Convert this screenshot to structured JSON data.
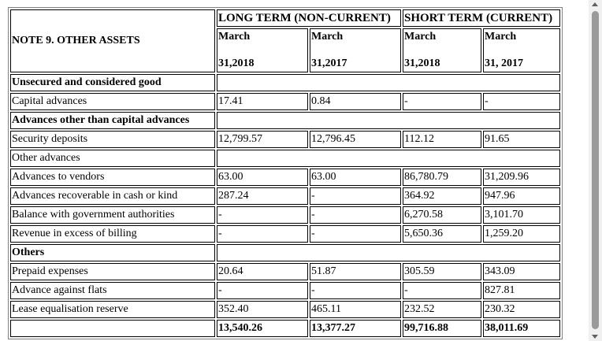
{
  "table": {
    "title": "NOTE 9. OTHER ASSETS",
    "group_long": "LONG TERM (NON-CURRENT)",
    "group_short": "SHORT TERM (CURRENT)",
    "periods": [
      {
        "line1": "March",
        "line2": "31,2018"
      },
      {
        "line1": "March",
        "line2": "31,2017"
      },
      {
        "line1": "March",
        "line2": "31,2018"
      },
      {
        "line1": "March",
        "line2": "31, 2017"
      }
    ],
    "rows": [
      {
        "label": "Unsecured and considered good",
        "section": true
      },
      {
        "label": "Capital advances",
        "values": [
          "17.41",
          "0.84",
          "-",
          "-"
        ]
      },
      {
        "label": "Advances other than capital advances",
        "section": true
      },
      {
        "label": "Security deposits",
        "values": [
          "12,799.57",
          "12,796.45",
          "112.12",
          "91.65"
        ]
      },
      {
        "label": "Other advances",
        "subsection": true
      },
      {
        "label": "Advances to vendors",
        "values": [
          "63.00",
          "63.00",
          "86,780.79",
          "31,209.96"
        ]
      },
      {
        "label": "Advances recoverable in cash or kind",
        "values": [
          "287.24",
          "-",
          "364.92",
          "947.96"
        ]
      },
      {
        "label": "Balance with government authorities",
        "values": [
          "-",
          "-",
          "6,270.58",
          "3,101.70"
        ]
      },
      {
        "label": "Revenue in excess of billing",
        "values": [
          "-",
          "-",
          "5,650.36",
          "1,259.20"
        ]
      },
      {
        "label": "Others",
        "section": true
      },
      {
        "label": "Prepaid expenses",
        "values": [
          "20.64",
          "51.87",
          "305.59",
          "343.09"
        ]
      },
      {
        "label": "Advance against flats",
        "values": [
          "-",
          "-",
          "-",
          "827.81"
        ]
      },
      {
        "label": "Lease equalisation reserve",
        "values": [
          "352.40",
          "465.11",
          "232.52",
          "230.32"
        ]
      }
    ],
    "totals": [
      "13,540.26",
      "13,377.27",
      "99,716.88",
      "38,011.69"
    ]
  }
}
